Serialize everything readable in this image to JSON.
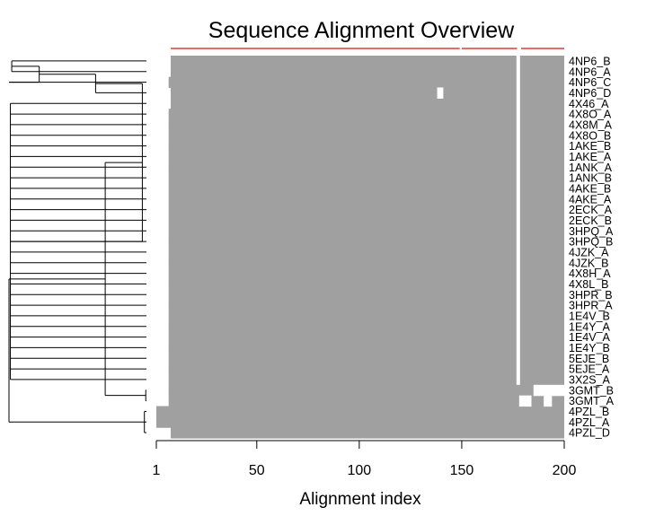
{
  "chart_data": {
    "type": "heatmap",
    "title": "Sequence Alignment Overview",
    "xlabel": "Alignment index",
    "ylabel": "",
    "xlim": [
      1,
      200
    ],
    "xticks": [
      1,
      50,
      100,
      150,
      200
    ],
    "grid": false,
    "legend": "none",
    "colors": {
      "aligned": "#a0a0a0",
      "gap": "#ffffff",
      "conservation_bar": "#e5392b",
      "tree": "#000000"
    },
    "sequences": [
      "4NP6_B",
      "4NP6_A",
      "4NP6_C",
      "4NP6_D",
      "4X46_A",
      "4X8O_A",
      "4X8M_A",
      "4X8O_B",
      "1AKE_B",
      "1AKE_A",
      "1ANK_A",
      "1ANK_B",
      "4AKE_B",
      "4AKE_A",
      "2ECK_A",
      "2ECK_B",
      "3HPQ_A",
      "3HPQ_B",
      "4JZK_A",
      "4JZK_B",
      "4X8H_A",
      "4X8L_B",
      "3HPR_B",
      "3HPR_A",
      "1E4V_B",
      "1E4Y_A",
      "1E4V_A",
      "1E4Y_B",
      "5EJE_B",
      "5EJE_A",
      "3X2S_A",
      "3GMT_B",
      "3GMT_A",
      "4PZL_B",
      "4PZL_A",
      "4PZL_D"
    ],
    "alignment_start": [
      8,
      8,
      7,
      8,
      8,
      7,
      7,
      7,
      7,
      7,
      7,
      7,
      7,
      7,
      7,
      7,
      7,
      7,
      7,
      7,
      7,
      7,
      7,
      7,
      7,
      7,
      7,
      7,
      7,
      7,
      7,
      7,
      7,
      1,
      1,
      8
    ],
    "alignment_end": 200,
    "gap_column": 178,
    "gap_blocks": [
      {
        "sequence": "4NP6_D",
        "from": 138,
        "to": 141
      },
      {
        "sequence": "3GMT_B",
        "from": 185,
        "to": 200
      },
      {
        "sequence": "3GMT_A",
        "from": 178,
        "to": 184
      },
      {
        "sequence": "3GMT_A",
        "from": 190,
        "to": 194
      }
    ],
    "conservation_gaps": [
      [
        149,
        150
      ],
      [
        177,
        179
      ]
    ]
  }
}
